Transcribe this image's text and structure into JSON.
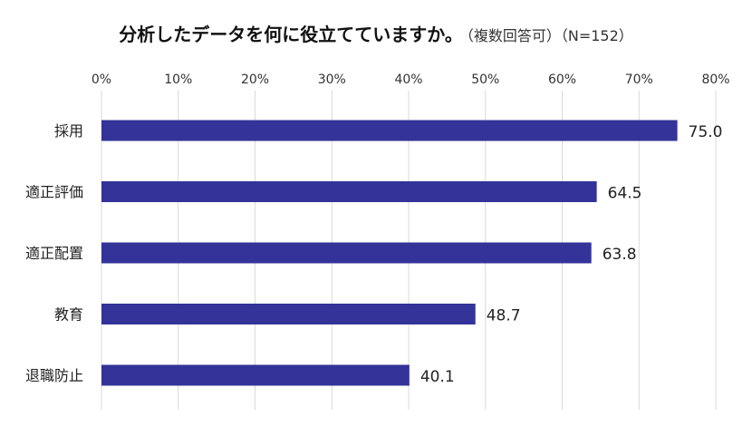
{
  "title": "分析したデータを何に役立てていますか。",
  "subtitle": "（複数回答可）（N=152）",
  "chart_data": {
    "type": "bar",
    "orientation": "horizontal",
    "title": "分析したデータを何に役立てていますか。",
    "subtitle": "（複数回答可）（N=152）",
    "categories": [
      "採用",
      "適正評価",
      "適正配置",
      "教育",
      "退職防止"
    ],
    "values": [
      75.0,
      64.5,
      63.8,
      48.7,
      40.1
    ],
    "value_labels": [
      "75.0",
      "64.5",
      "63.8",
      "48.7",
      "40.1"
    ],
    "x_ticks": [
      "0%",
      "10%",
      "20%",
      "30%",
      "40%",
      "50%",
      "60%",
      "70%",
      "80%"
    ],
    "xlim": [
      0,
      80
    ],
    "axis_position": "top",
    "grid": true,
    "bar_color": "#333399",
    "grid_color": "#d9d9d9"
  }
}
